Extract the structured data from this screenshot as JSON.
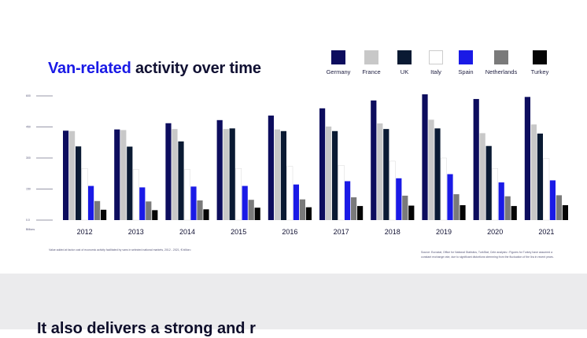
{
  "title": {
    "accent": "Van-related",
    "rest": " activity over time"
  },
  "chart_data": {
    "type": "bar",
    "categories": [
      "2012",
      "2013",
      "2014",
      "2015",
      "2016",
      "2017",
      "2018",
      "2019",
      "2020",
      "2021"
    ],
    "ylabel": "Billions",
    "ylim": [
      0,
      600
    ],
    "yticks": [
      "0.0",
      "150",
      "300",
      "450",
      "600"
    ],
    "legend_position": "top-right",
    "series": [
      {
        "name": "Germany",
        "color": "#0d0d5e",
        "values": [
          432,
          438,
          468,
          483,
          505,
          540,
          578,
          620,
          585,
          595
        ]
      },
      {
        "name": "France",
        "color": "#c8c8c8",
        "values": [
          430,
          435,
          440,
          440,
          438,
          452,
          467,
          485,
          420,
          462
        ]
      },
      {
        "name": "UK",
        "color": "#0a1a33",
        "values": [
          356,
          355,
          380,
          443,
          430,
          430,
          440,
          443,
          358,
          418
        ]
      },
      {
        "name": "Italy",
        "color": "#ffffff",
        "values": [
          250,
          245,
          245,
          250,
          260,
          265,
          285,
          300,
          250,
          298
        ]
      },
      {
        "name": "Spain",
        "color": "#1a1ae6",
        "values": [
          165,
          158,
          162,
          165,
          172,
          188,
          202,
          222,
          182,
          192
        ]
      },
      {
        "name": "Netherlands",
        "color": "#7a7a7a",
        "values": [
          92,
          90,
          95,
          98,
          100,
          110,
          118,
          125,
          115,
          120
        ]
      },
      {
        "name": "Turkey",
        "color": "#050505",
        "values": [
          50,
          48,
          52,
          60,
          62,
          68,
          70,
          72,
          68,
          72
        ]
      }
    ]
  },
  "footnote_left": "Value added at factor cost of economic activity facilitated by vans in selected national markets, 2012 - 2021, € billion¹",
  "footnote_right": "Source: Eurostat, Office for National Statistics, TurkStat, Cebr analysis ¹ Figures for Turkey have assumed a constant exchange rate, due to significant distortions stemming from the fluctuation of the lira in recent years.",
  "next_title": "It also delivers a strong and r"
}
